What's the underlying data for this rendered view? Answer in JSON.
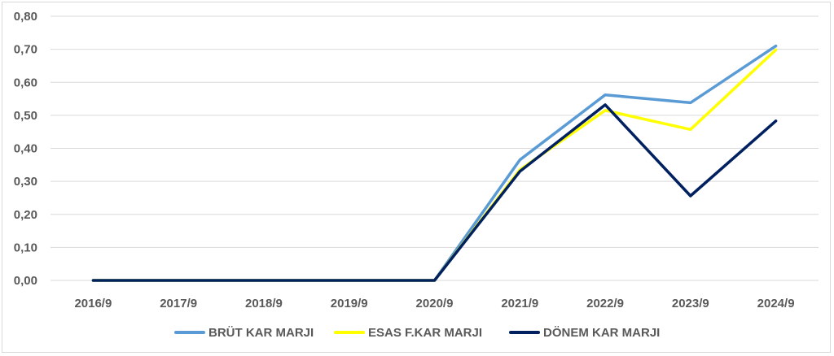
{
  "chart_data": {
    "type": "line",
    "title": "",
    "xlabel": "",
    "ylabel": "",
    "categories": [
      "2016/9",
      "2017/9",
      "2018/9",
      "2019/9",
      "2020/9",
      "2021/9",
      "2022/9",
      "2023/9",
      "2024/9"
    ],
    "y_ticks": [
      "0,00",
      "0,10",
      "0,20",
      "0,30",
      "0,40",
      "0,50",
      "0,60",
      "0,70",
      "0,80"
    ],
    "ylim": [
      0,
      0.8
    ],
    "grid": true,
    "legend_position": "bottom",
    "series": [
      {
        "name": "BRÜT KAR MARJI",
        "color": "#5b9bd5",
        "values": [
          0,
          0,
          0,
          0,
          0,
          0.365,
          0.562,
          0.538,
          0.71
        ]
      },
      {
        "name": "ESAS F.KAR MARJI",
        "color": "#ffff00",
        "values": [
          0,
          0,
          0,
          0,
          0,
          0.335,
          0.515,
          0.457,
          0.698
        ]
      },
      {
        "name": "DÖNEM KAR MARJI",
        "color": "#002060",
        "values": [
          0,
          0,
          0,
          0,
          0,
          0.33,
          0.532,
          0.256,
          0.483
        ]
      }
    ]
  }
}
